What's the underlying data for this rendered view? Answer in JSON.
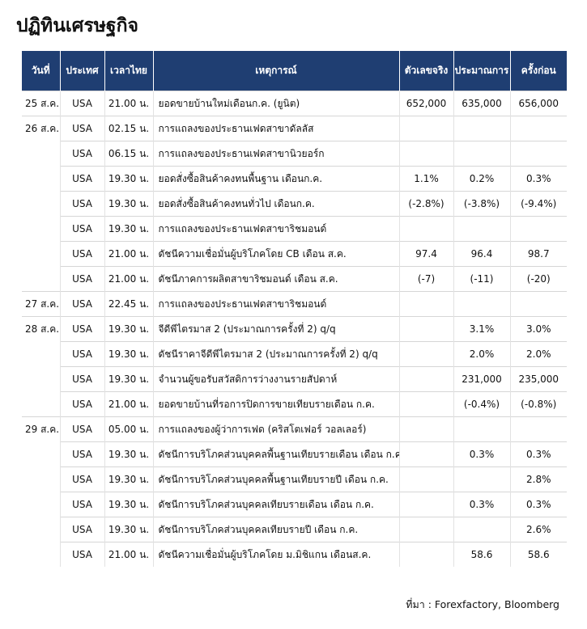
{
  "header": {
    "title": "ปฏิทินเศรษฐกิจ"
  },
  "table": {
    "columns": [
      "วันที่",
      "ประเทศ",
      "เวลาไทย",
      "เหตุการณ์",
      "ตัวเลขจริง",
      "ประมาณการ",
      "ครั้งก่อน"
    ],
    "rows": [
      [
        "25 ส.ค.",
        "USA",
        "21.00 น.",
        "ยอดขายบ้านใหม่เดือนก.ค. (ยูนิต)",
        "652,000",
        "635,000",
        "656,000"
      ],
      [
        "26 ส.ค.",
        "USA",
        "02.15 น.",
        "การแถลงของประธานเฟดสาขาดัลลัส",
        null,
        null,
        null
      ],
      [
        null,
        "USA",
        "06.15 น.",
        "การแถลงของประธานเฟดสาขานิวยอร์ก",
        null,
        null,
        null
      ],
      [
        null,
        "USA",
        "19.30 น.",
        "ยอดสั่งซื้อสินค้าคงทนพื้นฐาน เดือนก.ค.",
        "1.1%",
        "0.2%",
        "0.3%"
      ],
      [
        null,
        "USA",
        "19.30 น.",
        "ยอดสั่งซื้อสินค้าคงทนทั่วไป เดือนก.ค.",
        "(-2.8%)",
        "(-3.8%)",
        "(-9.4%)"
      ],
      [
        null,
        "USA",
        "19.30 น.",
        "การแถลงของประธานเฟดสาขาริชมอนด์",
        null,
        null,
        null
      ],
      [
        null,
        "USA",
        "21.00 น.",
        "ดัชนีความเชื่อมั่นผู้บริโภคโดย CB เดือน ส.ค.",
        "97.4",
        "96.4",
        "98.7"
      ],
      [
        null,
        "USA",
        "21.00 น.",
        "ดัชนีภาคการผลิตสาขาริชมอนด์ เดือน ส.ค.",
        "(-7)",
        "(-11)",
        "(-20)"
      ],
      [
        "27 ส.ค.",
        "USA",
        "22.45 น.",
        "การแถลงของประธานเฟดสาขาริชมอนด์",
        null,
        null,
        null
      ],
      [
        "28 ส.ค.",
        "USA",
        "19.30 น.",
        "จีดีพีไตรมาส 2 (ประมาณการครั้งที่ 2) q/q",
        null,
        "3.1%",
        "3.0%"
      ],
      [
        null,
        "USA",
        "19.30 น.",
        "ดัชนีราคาจีดีพีไตรมาส 2 (ประมาณการครั้งที่ 2) q/q",
        null,
        "2.0%",
        "2.0%"
      ],
      [
        null,
        "USA",
        "19.30 น.",
        "จำนวนผู้ขอรับสวัสดิการว่างงานรายสัปดาห์",
        null,
        "231,000",
        "235,000"
      ],
      [
        null,
        "USA",
        "21.00 น.",
        "ยอดขายบ้านที่รอการปิดการขายเทียบรายเดือน ก.ค.",
        null,
        "(-0.4%)",
        "(-0.8%)"
      ],
      [
        "29 ส.ค.",
        "USA",
        "05.00 น.",
        "การแถลงของผู้ว่าการเฟด (คริสโตเฟอร์ วอลเลอร์)",
        null,
        null,
        null
      ],
      [
        null,
        "USA",
        "19.30 น.",
        "ดัชนีการบริโภคส่วนบุคคลพื้นฐานเทียบรายเดือน เดือน ก.ค.",
        null,
        "0.3%",
        "0.3%"
      ],
      [
        null,
        "USA",
        "19.30 น.",
        "ดัชนีการบริโภคส่วนบุคคลพื้นฐานเทียบรายปี เดือน ก.ค.",
        null,
        null,
        "2.8%"
      ],
      [
        null,
        "USA",
        "19.30 น.",
        "ดัชนีการบริโภคส่วนบุคคลเทียบรายเดือน เดือน ก.ค.",
        null,
        "0.3%",
        "0.3%"
      ],
      [
        null,
        "USA",
        "19.30 น.",
        "ดัชนีการบริโภคส่วนบุคคลเทียบรายปี เดือน ก.ค.",
        null,
        null,
        "2.6%"
      ],
      [
        null,
        "USA",
        "21.00 น.",
        "ดัชนีความเชื่อมั่นผู้บริโภคโดย ม.มิชิแกน เดือนส.ค.",
        null,
        "58.6",
        "58.6"
      ]
    ]
  },
  "footer": {
    "source": "ที่มา : Forexfactory, Bloomberg"
  }
}
